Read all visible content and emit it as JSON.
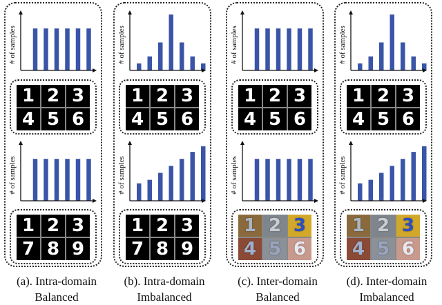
{
  "colors": {
    "bar": "#3a55a7",
    "axis": "#111111",
    "border": "#222222"
  },
  "panels": [
    {
      "caption_line1": "(a). Intra-domain",
      "caption_line2": "Balanced",
      "charts": [
        {
          "ylabel": "# of samples",
          "values": [
            6,
            6,
            6,
            6,
            6,
            6
          ]
        },
        {
          "ylabel": "# of samples",
          "values": [
            6,
            6,
            6,
            6,
            6,
            6
          ]
        }
      ],
      "grids": [
        {
          "style": "mnist",
          "digits": [
            "1",
            "2",
            "3",
            "4",
            "5",
            "6"
          ]
        },
        {
          "style": "mnist",
          "digits": [
            "1",
            "2",
            "3",
            "7",
            "8",
            "9"
          ]
        }
      ]
    },
    {
      "caption_line1": "(b). Intra-domain",
      "caption_line2": "Imbalanced",
      "charts": [
        {
          "ylabel": "# of samples",
          "values": [
            1,
            2,
            4,
            8,
            4,
            2,
            1
          ]
        },
        {
          "ylabel": "# of samples",
          "values": [
            2.5,
            3,
            4,
            5,
            6,
            7,
            7.8
          ]
        }
      ],
      "grids": [
        {
          "style": "mnist",
          "digits": [
            "1",
            "2",
            "3",
            "4",
            "5",
            "6"
          ]
        },
        {
          "style": "mnist",
          "digits": [
            "1",
            "2",
            "3",
            "7",
            "8",
            "9"
          ]
        }
      ]
    },
    {
      "caption_line1": "(c). Inter-domain",
      "caption_line2": "Balanced",
      "charts": [
        {
          "ylabel": "# of samples",
          "values": [
            6,
            6,
            6,
            6,
            6,
            6
          ]
        },
        {
          "ylabel": "# of samples",
          "values": [
            6,
            6,
            6,
            6,
            6,
            6
          ]
        }
      ],
      "grids": [
        {
          "style": "mnist",
          "digits": [
            "1",
            "2",
            "3",
            "4",
            "5",
            "6"
          ]
        },
        {
          "style": "svhn",
          "digits": [
            "1",
            "2",
            "3",
            "4",
            "5",
            "6"
          ]
        }
      ]
    },
    {
      "caption_line1": "(d). Inter-domain",
      "caption_line2": "Imbalanced",
      "charts": [
        {
          "ylabel": "# of samples",
          "values": [
            1,
            2,
            4,
            8,
            4,
            2,
            1
          ]
        },
        {
          "ylabel": "# of samples",
          "values": [
            2.5,
            3,
            4,
            5,
            6,
            7,
            7.8
          ]
        }
      ],
      "grids": [
        {
          "style": "mnist",
          "digits": [
            "1",
            "2",
            "3",
            "4",
            "5",
            "6"
          ]
        },
        {
          "style": "svhn",
          "digits": [
            "1",
            "2",
            "3",
            "4",
            "5",
            "6"
          ]
        }
      ]
    }
  ]
}
